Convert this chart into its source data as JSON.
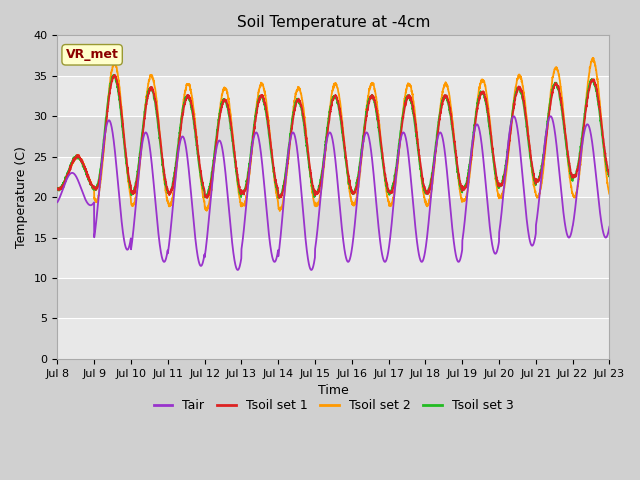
{
  "title": "Soil Temperature at -4cm",
  "xlabel": "Time",
  "ylabel": "Temperature (C)",
  "xlim": [
    0,
    15
  ],
  "ylim": [
    0,
    40
  ],
  "yticks": [
    0,
    5,
    10,
    15,
    20,
    25,
    30,
    35,
    40
  ],
  "xtick_labels": [
    "Jul 8",
    "Jul 9",
    "Jul 10",
    "Jul 11",
    "Jul 12",
    "Jul 13",
    "Jul 14",
    "Jul 15",
    "Jul 16",
    "Jul 17",
    "Jul 18",
    "Jul 19",
    "Jul 20",
    "Jul 21",
    "Jul 22",
    "Jul 23"
  ],
  "outer_bg": "#d0d0d0",
  "plot_bg": "#e8e8e8",
  "band_light": "#dcdcdc",
  "band_dark": "#e8e8e8",
  "annotation_text": "VR_met",
  "annotation_color": "#8B0000",
  "annotation_bg": "#ffffcc",
  "annotation_edge": "#999933",
  "colors": {
    "Tair": "#9933cc",
    "Tsoil1": "#dd2222",
    "Tsoil2": "#ff9900",
    "Tsoil3": "#22bb22"
  },
  "legend_labels": [
    "Tair",
    "Tsoil set 1",
    "Tsoil set 2",
    "Tsoil set 3"
  ],
  "legend_colors": [
    "#9933cc",
    "#dd2222",
    "#ff9900",
    "#22bb22"
  ]
}
